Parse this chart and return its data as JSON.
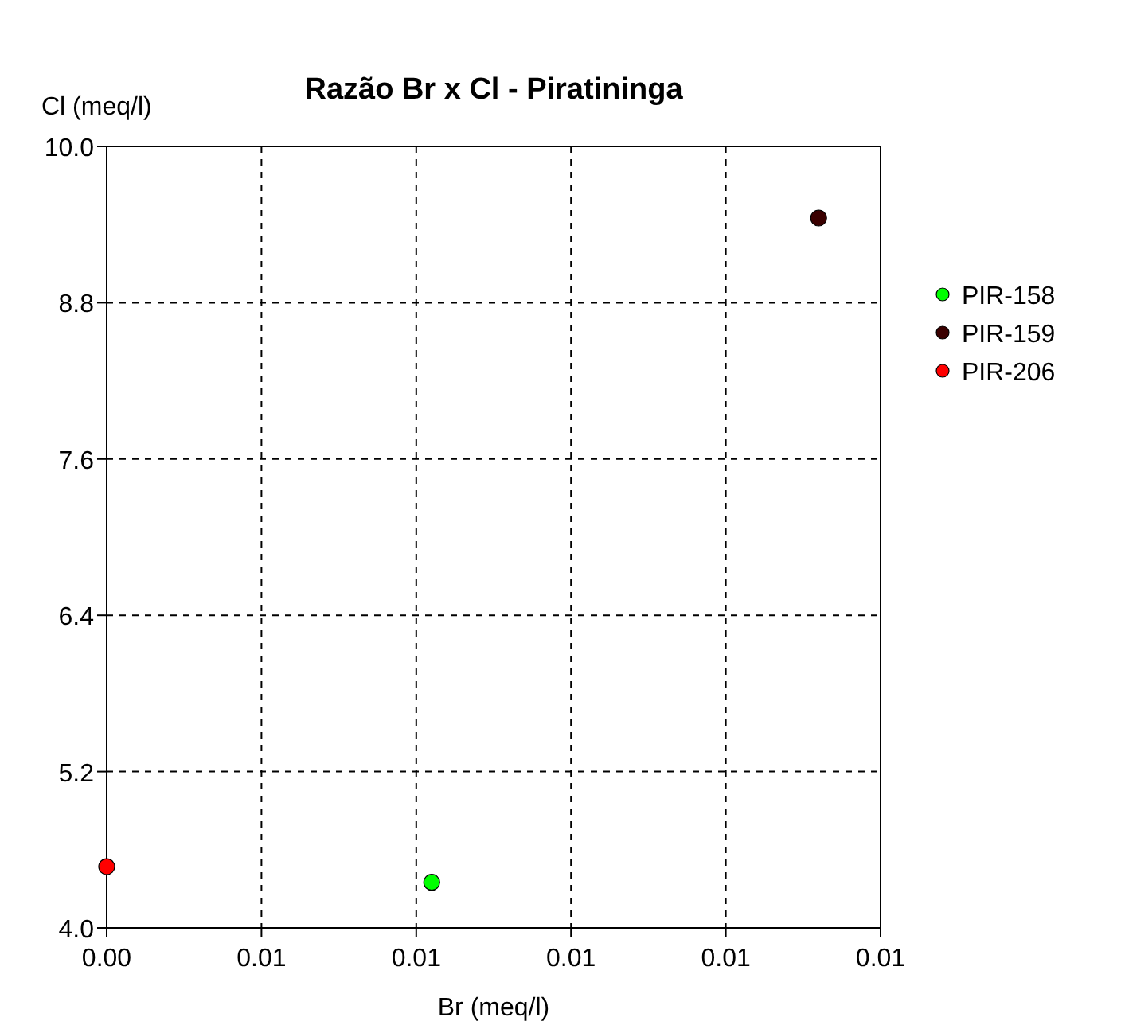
{
  "chart_data": {
    "type": "scatter",
    "title": "Razão Br x Cl - Piratininga",
    "xlabel": "Br (meq/l)",
    "ylabel": "Cl (meq/l)",
    "xlim": [
      0.004,
      0.014
    ],
    "xticks": [
      {
        "value": 0.004,
        "label": "0.00"
      },
      {
        "value": 0.006,
        "label": "0.01"
      },
      {
        "value": 0.008,
        "label": "0.01"
      },
      {
        "value": 0.01,
        "label": "0.01"
      },
      {
        "value": 0.012,
        "label": "0.01"
      },
      {
        "value": 0.014,
        "label": "0.01"
      }
    ],
    "ylim": [
      4,
      10
    ],
    "yticks": [
      {
        "value": 4,
        "label": "4.0"
      },
      {
        "value": 5.2,
        "label": "5.2"
      },
      {
        "value": 6.4,
        "label": "6.4"
      },
      {
        "value": 7.6,
        "label": "7.6"
      },
      {
        "value": 8.8,
        "label": "8.8"
      },
      {
        "value": 10,
        "label": "10.0"
      }
    ],
    "grid": true,
    "legend": "right",
    "marker": "circle",
    "series": [
      {
        "name": "PIR-158",
        "color": "#00ff00",
        "x": [
          0.0082
        ],
        "values": [
          4.35
        ]
      },
      {
        "name": "PIR-159",
        "color": "#3a0000",
        "x": [
          0.0132
        ],
        "values": [
          9.45
        ]
      },
      {
        "name": "PIR-206",
        "color": "#ff0000",
        "x": [
          0.004
        ],
        "values": [
          4.47
        ]
      }
    ]
  }
}
